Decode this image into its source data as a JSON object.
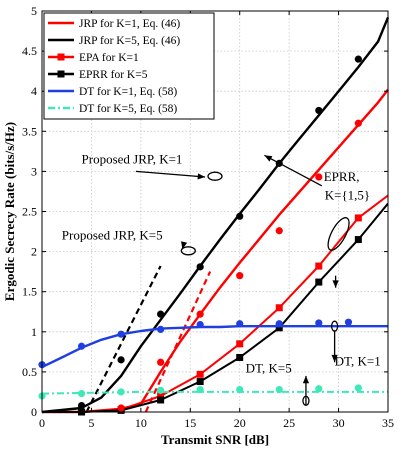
{
  "chart_data": {
    "type": "line",
    "title": "",
    "xlabel": "Transmit SNR [dB]",
    "ylabel": "Ergodic Secrecy Rate (bits/s/Hz)",
    "xlim": [
      0,
      35
    ],
    "ylim": [
      0,
      5
    ],
    "xticks": [
      0,
      5,
      10,
      15,
      20,
      25,
      30,
      35
    ],
    "yticks": [
      0,
      0.5,
      1,
      1.5,
      2,
      2.5,
      3,
      3.5,
      4,
      4.5,
      5
    ],
    "xtick_labels": [
      "0",
      "5",
      "10",
      "15",
      "20",
      "25",
      "30",
      "35"
    ],
    "ytick_labels": [
      "0",
      "0.5",
      "1",
      "1.5",
      "2",
      "2.5",
      "3",
      "3.5",
      "4",
      "4.5",
      "5"
    ],
    "grid": true,
    "legend_position": "top-left",
    "legend": [
      "JRP for K=1, Eq. (46)",
      "JRP for K=5, Eq. (46)",
      "EPA for K=1",
      "EPRR for K=5",
      "DT for K=1, Eq. (58)",
      "DT for K=5, Eq. (58)"
    ],
    "series": [
      {
        "name": "JRP for K=1, Eq. (46)",
        "style": "analytical",
        "color": "#ff0000",
        "x": [
          0,
          4,
          6,
          8,
          10,
          12,
          14,
          16,
          18,
          20,
          22,
          24,
          26,
          28,
          30,
          32,
          34,
          35
        ],
        "y": [
          0,
          0,
          0.02,
          0.04,
          0.1,
          0.5,
          0.88,
          1.22,
          1.55,
          1.86,
          2.16,
          2.46,
          2.74,
          3.02,
          3.3,
          3.58,
          3.86,
          4.02
        ]
      },
      {
        "name": "JRP for K=5, Eq. (46)",
        "style": "analytical",
        "color": "#000000",
        "x": [
          0,
          4,
          6,
          8,
          10,
          12,
          14,
          16,
          18,
          20,
          22,
          24,
          26,
          28,
          30,
          32,
          34,
          35
        ],
        "y": [
          0,
          0.05,
          0.18,
          0.45,
          0.82,
          1.15,
          1.48,
          1.82,
          2.15,
          2.47,
          2.78,
          3.1,
          3.4,
          3.7,
          4.0,
          4.3,
          4.62,
          4.92
        ]
      },
      {
        "name": "EPA for K=1",
        "style": "simulation",
        "color": "#ff0000",
        "x": [
          0,
          4,
          8,
          12,
          16,
          20,
          24,
          28,
          32,
          35
        ],
        "y": [
          0,
          0,
          0.03,
          0.2,
          0.47,
          0.85,
          1.3,
          1.82,
          2.42,
          2.7
        ]
      },
      {
        "name": "EPRR for K=5",
        "style": "simulation",
        "color": "#000000",
        "x": [
          0,
          4,
          8,
          12,
          16,
          20,
          24,
          28,
          32,
          35
        ],
        "y": [
          0,
          0,
          0.02,
          0.15,
          0.38,
          0.68,
          1.05,
          1.62,
          2.15,
          2.6
        ]
      },
      {
        "name": "DT for K=1, Eq. (58)",
        "style": "analytical",
        "color": "#1f3fe0",
        "x": [
          0,
          2,
          4,
          6,
          8,
          10,
          12,
          14,
          16,
          18,
          20,
          22,
          24,
          26,
          28,
          30,
          32,
          35
        ],
        "y": [
          0.56,
          0.68,
          0.8,
          0.9,
          0.97,
          1.01,
          1.04,
          1.05,
          1.06,
          1.06,
          1.07,
          1.07,
          1.07,
          1.07,
          1.07,
          1.07,
          1.07,
          1.07
        ]
      },
      {
        "name": "DT for K=5, Eq. (58)",
        "style": "analytical",
        "color": "#3fe8b8",
        "x": [
          0,
          5,
          10,
          15,
          20,
          25,
          30,
          35
        ],
        "y": [
          0.23,
          0.24,
          0.25,
          0.25,
          0.25,
          0.25,
          0.25,
          0.25
        ]
      }
    ],
    "extra_lines": [
      {
        "desc": "red dashed asymptote",
        "color": "#ff0000",
        "x": [
          10.5,
          17
        ],
        "y": [
          0,
          1.75
        ]
      },
      {
        "desc": "black dashed asymptote",
        "color": "#000000",
        "x": [
          4.5,
          12
        ],
        "y": [
          0,
          1.82
        ]
      }
    ],
    "markers": [
      {
        "color": "#ff0000",
        "x": [
          8,
          12,
          16,
          20,
          24,
          28,
          32
        ],
        "y": [
          0.05,
          0.62,
          1.22,
          1.7,
          2.26,
          2.93,
          3.6
        ]
      },
      {
        "color": "#000000",
        "x": [
          4,
          8,
          12,
          16,
          20,
          24,
          28,
          32
        ],
        "y": [
          0.08,
          0.65,
          1.22,
          1.81,
          2.44,
          3.1,
          3.76,
          4.4
        ]
      },
      {
        "color": "#1f3fe0",
        "x": [
          0,
          4,
          8,
          12,
          16,
          20,
          24,
          28,
          31
        ],
        "y": [
          0.59,
          0.82,
          0.97,
          1.03,
          1.09,
          1.1,
          1.1,
          1.11,
          1.12
        ]
      },
      {
        "color": "#3fe8b8",
        "x": [
          0,
          4,
          8,
          12,
          16,
          20,
          24,
          28,
          32
        ],
        "y": [
          0.2,
          0.23,
          0.25,
          0.27,
          0.28,
          0.28,
          0.28,
          0.29,
          0.3
        ]
      }
    ],
    "annotations": [
      {
        "text": "Proposed JRP, K=1",
        "x": 4,
        "y": 3.1,
        "arrow_to": [
          16.3,
          2.94
        ]
      },
      {
        "text": "Proposed JRP, K=5",
        "x": 2,
        "y": 2.15,
        "arrow_to": [
          13.5,
          2.0
        ]
      },
      {
        "text": "EPRR,",
        "x": 28.5,
        "y": 2.88,
        "arrow_to": [
          23.5,
          2.95
        ]
      },
      {
        "text": "K={1,5}",
        "x": 28.6,
        "y": 2.65,
        "arrow_to": null
      },
      {
        "text": "DT, K=1",
        "x": 29.6,
        "y": 0.58,
        "arrow_to": null
      },
      {
        "text": "DT, K=5",
        "x": 20.6,
        "y": 0.49,
        "arrow_to": null
      }
    ]
  }
}
